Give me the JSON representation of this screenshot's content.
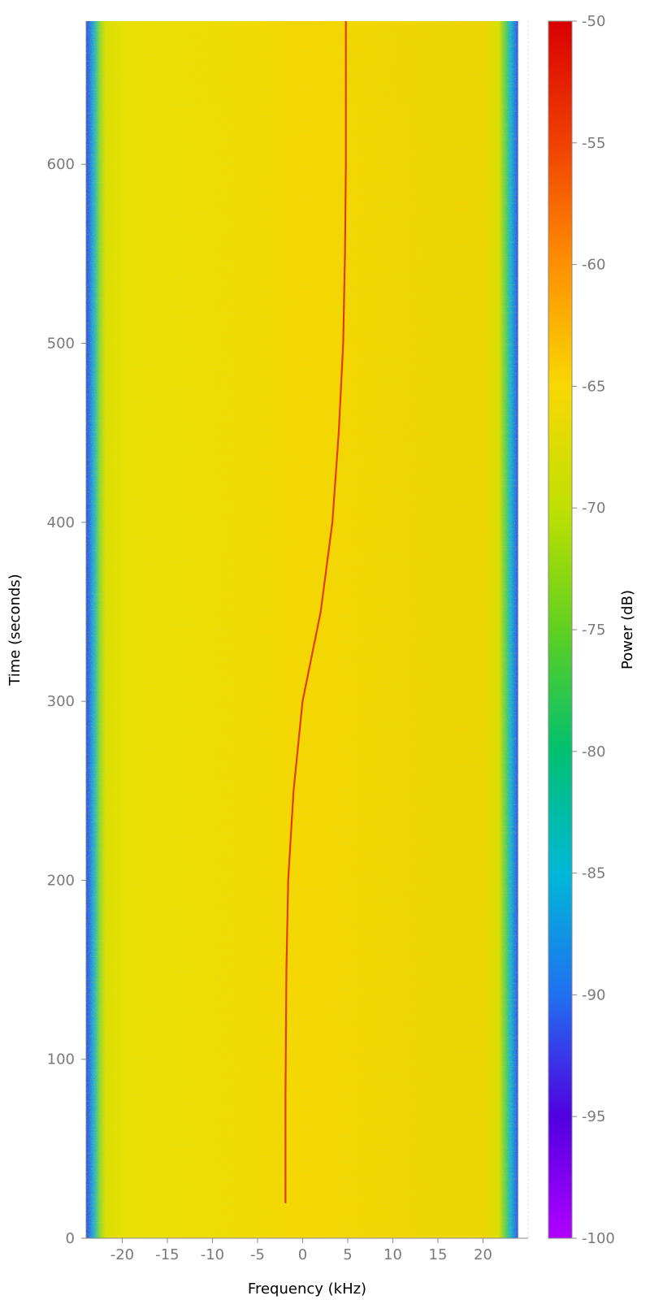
{
  "chart_data": {
    "type": "heatmap",
    "xlabel": "Frequency (kHz)",
    "ylabel": "Time (seconds)",
    "xlim": [
      -24,
      25
    ],
    "ylim": [
      0,
      680
    ],
    "x_ticks": [
      -20,
      -15,
      -10,
      -5,
      0,
      5,
      10,
      15,
      20
    ],
    "y_ticks": [
      0,
      100,
      200,
      300,
      400,
      500,
      600
    ],
    "grid": false,
    "colorbar": {
      "label": "Power (dB)",
      "range": [
        -100,
        -50
      ],
      "ticks": [
        -50,
        -55,
        -60,
        -65,
        -70,
        -75,
        -80,
        -85,
        -90,
        -95,
        -100
      ],
      "colormap": [
        "#b000ff",
        "#5000e0",
        "#2070f0",
        "#00b8d8",
        "#00c070",
        "#60d020",
        "#c0e000",
        "#f8d800",
        "#ff9000",
        "#f04000",
        "#d80000"
      ]
    },
    "signal_trace": {
      "description": "narrow carrier trace (approx. -62 dB)",
      "time": [
        20,
        80,
        150,
        200,
        250,
        300,
        350,
        400,
        450,
        500,
        550,
        600,
        680
      ],
      "freq": [
        -1.9,
        -1.9,
        -1.8,
        -1.6,
        -1.0,
        0.0,
        2.0,
        3.3,
        4.0,
        4.5,
        4.7,
        4.8,
        4.8
      ]
    },
    "noise_floor_db": -63,
    "passband_edge_db": -88
  }
}
